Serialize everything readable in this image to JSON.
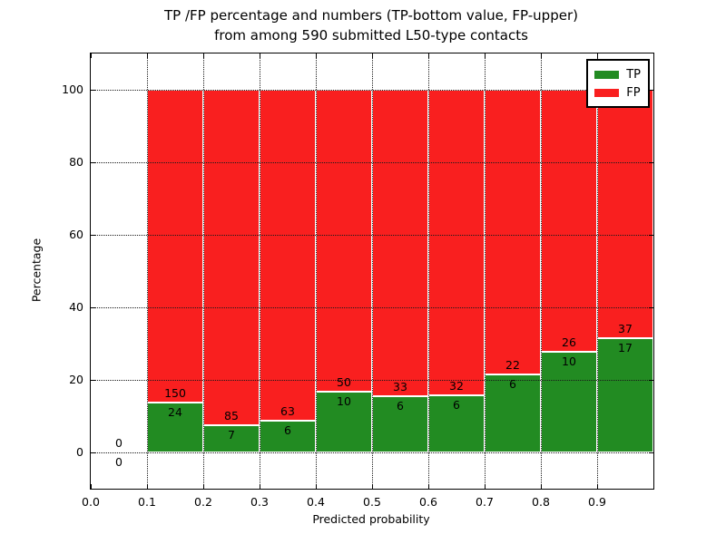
{
  "chart_data": {
    "type": "bar",
    "stacked": true,
    "title_lines": [
      "TP /FP percentage and numbers (TP-bottom value, FP-upper)",
      "from among 590 submitted L50-type contacts"
    ],
    "xlabel": "Predicted probability",
    "ylabel": "Percentage",
    "xlim": [
      0.0,
      1.0
    ],
    "ylim": [
      -10,
      110
    ],
    "xtick_values": [
      0.0,
      0.1,
      0.2,
      0.3,
      0.4,
      0.5,
      0.6,
      0.7,
      0.8,
      0.9
    ],
    "xtick_labels": [
      "0.0",
      "0.1",
      "0.2",
      "0.3",
      "0.4",
      "0.5",
      "0.6",
      "0.7",
      "0.8",
      "0.9"
    ],
    "ytick_values": [
      0,
      20,
      40,
      60,
      80,
      100
    ],
    "ytick_labels": [
      "0",
      "20",
      "40",
      "60",
      "80",
      "100"
    ],
    "grid": true,
    "bar_edge_color": "#ffffff",
    "legend": {
      "position": "upper right",
      "entries": [
        {
          "label": "TP",
          "color": "#228b22"
        },
        {
          "label": "FP",
          "color": "#f91f1f"
        }
      ]
    },
    "bins": [
      {
        "range": [
          0.0,
          0.1
        ],
        "tp": 0,
        "fp": 0
      },
      {
        "range": [
          0.1,
          0.2
        ],
        "tp": 24,
        "fp": 150
      },
      {
        "range": [
          0.2,
          0.3
        ],
        "tp": 7,
        "fp": 85
      },
      {
        "range": [
          0.3,
          0.4
        ],
        "tp": 6,
        "fp": 63
      },
      {
        "range": [
          0.4,
          0.5
        ],
        "tp": 10,
        "fp": 50
      },
      {
        "range": [
          0.5,
          0.6
        ],
        "tp": 6,
        "fp": 33
      },
      {
        "range": [
          0.6,
          0.7
        ],
        "tp": 6,
        "fp": 32
      },
      {
        "range": [
          0.7,
          0.8
        ],
        "tp": 6,
        "fp": 22
      },
      {
        "range": [
          0.8,
          0.9
        ],
        "tp": 10,
        "fp": 26
      },
      {
        "range": [
          0.9,
          1.0
        ],
        "tp": 17,
        "fp": 37
      }
    ]
  }
}
